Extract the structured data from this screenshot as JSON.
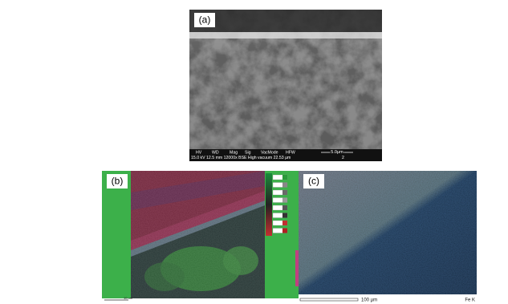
{
  "panels": [
    {
      "label": "(a)",
      "info_header": [
        "HV",
        "WD",
        "Mag",
        "Sig",
        "VacMode",
        "HFW"
      ],
      "scale_bar": "5.0μm",
      "info_values": "15.0 kV 12.5 mm 12000x BSE High vacuum 22.53 µm",
      "info_index": "2"
    },
    {
      "label": "(b)",
      "scale_bar": "10 um"
    },
    {
      "label": "(c)",
      "scale_bar": "100 µm",
      "element": "Fe K"
    }
  ]
}
